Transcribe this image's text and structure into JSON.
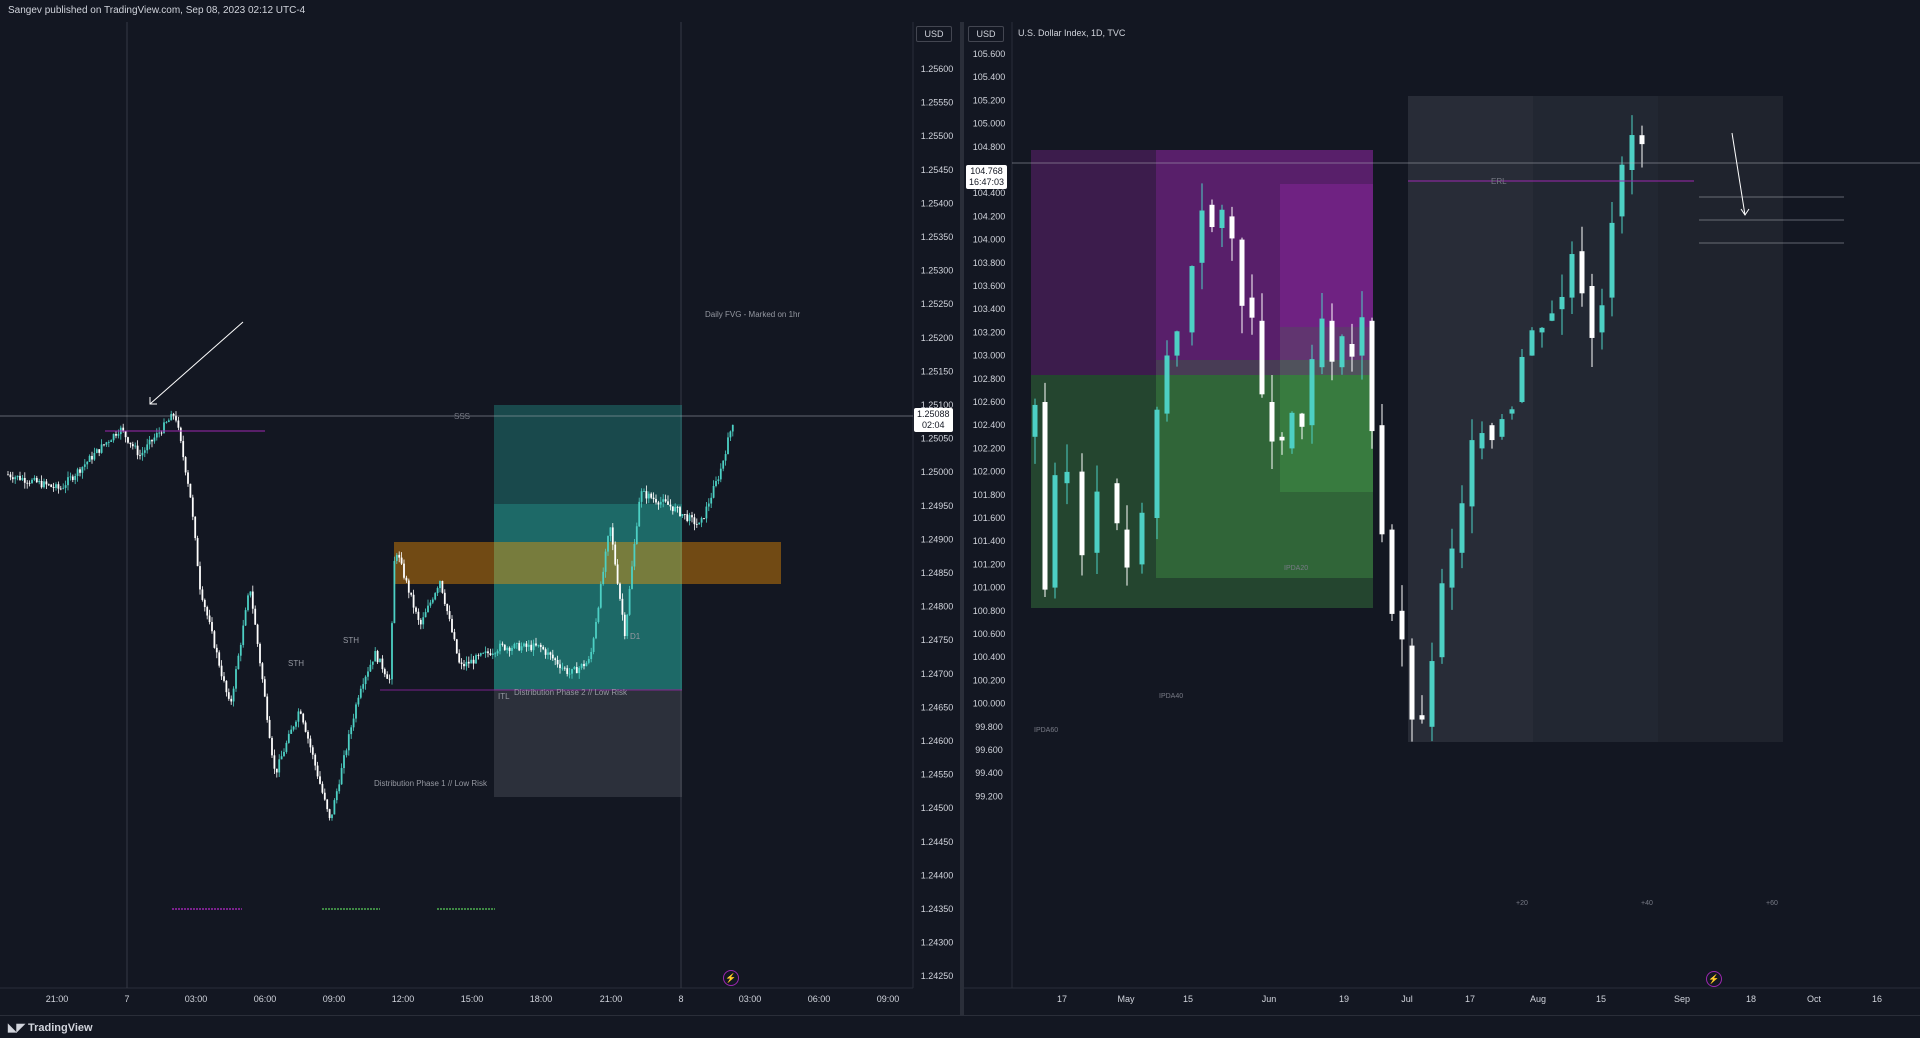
{
  "header": {
    "publish_line": "Sangev published on TradingView.com, Sep 08, 2023 02:12 UTC-4"
  },
  "footer": {
    "brand": "TradingView"
  },
  "colors": {
    "background": "#131722",
    "bull": "#4dd0c4",
    "bear": "#ffffff",
    "purple_zone": "#9c27b0",
    "green_zone": "#4caf50",
    "teal_zone": "#26a69a",
    "orange_zone": "#ff9800",
    "grey_zone": "#787b86"
  },
  "left_chart": {
    "currency": "USD",
    "last_price": "1.25088",
    "countdown": "02:04",
    "y_ticks": [
      "1.25600",
      "1.25550",
      "1.25500",
      "1.25450",
      "1.25400",
      "1.25350",
      "1.25300",
      "1.25250",
      "1.25200",
      "1.25150",
      "1.25100",
      "1.25050",
      "1.25000",
      "1.24950",
      "1.24900",
      "1.24850",
      "1.24800",
      "1.24750",
      "1.24700",
      "1.24650",
      "1.24600",
      "1.24550",
      "1.24500",
      "1.24450",
      "1.24400",
      "1.24350",
      "1.24300",
      "1.24250"
    ],
    "x_ticks": [
      "21:00",
      "7",
      "03:00",
      "06:00",
      "09:00",
      "12:00",
      "15:00",
      "18:00",
      "21:00",
      "8",
      "03:00",
      "06:00",
      "09:00"
    ],
    "annotations": {
      "sss": "SSS",
      "daily_fvg": "Daily FVG - Marked on 1hr",
      "sth_1": "STH",
      "sth_2": "STH",
      "itl": "ITL",
      "d1": "D1",
      "dist_phase_1": "Distribution Phase 1 // Low Risk",
      "dist_phase_2": "Distribution Phase 2 // Low Risk"
    }
  },
  "right_chart": {
    "currency": "USD",
    "symbol_title": "U.S. Dollar Index, 1D, TVC",
    "last_price": "104.768",
    "countdown": "16:47:03",
    "y_ticks": [
      "105.600",
      "105.400",
      "105.200",
      "105.000",
      "104.800",
      "104.600",
      "104.400",
      "104.200",
      "104.000",
      "103.800",
      "103.600",
      "103.400",
      "103.200",
      "103.000",
      "102.800",
      "102.600",
      "102.400",
      "102.200",
      "102.000",
      "101.800",
      "101.600",
      "101.400",
      "101.200",
      "101.000",
      "100.800",
      "100.600",
      "100.400",
      "100.200",
      "100.000",
      "99.800",
      "99.600",
      "99.400",
      "99.200"
    ],
    "x_ticks": [
      "17",
      "May",
      "15",
      "Jun",
      "19",
      "Jul",
      "17",
      "Aug",
      "15",
      "Sep",
      "18",
      "Oct",
      "16"
    ],
    "annotations": {
      "erl": "ERL",
      "ipda60": "IPDA60",
      "ipda40": "IPDA40",
      "ipda20": "IPDA20",
      "plus20": "+20",
      "plus40": "+40",
      "plus60": "+60"
    }
  }
}
